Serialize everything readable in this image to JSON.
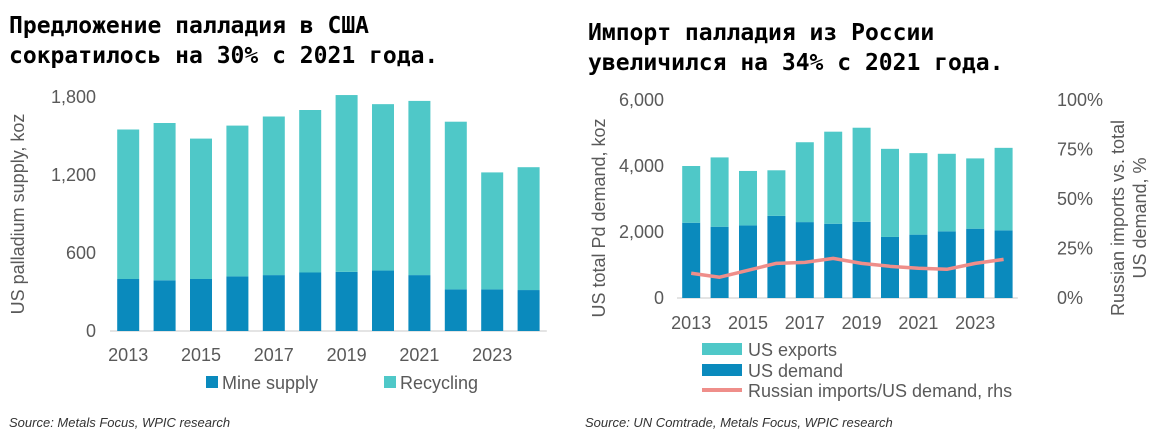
{
  "colors": {
    "mine": "#0a8abd",
    "recycling": "#4fc8c8",
    "us_demand": "#0a8abd",
    "us_exports": "#4fc8c8",
    "russian_line": "#ef8e8a",
    "axis_text": "#595959",
    "axis_line": "#c8c8c8"
  },
  "chart_data": [
    {
      "type": "bar",
      "stacked": true,
      "title": [
        "Предложение палладия в США",
        "сократилось на 30% с 2021 года."
      ],
      "ylabel": "US palladium supply, koz",
      "ylim": [
        0,
        1800
      ],
      "yticks": [
        "0",
        "600",
        "1,200",
        "1,800"
      ],
      "ytick_values": [
        0,
        600,
        1200,
        1800
      ],
      "categories": [
        "2013",
        "2014",
        "2015",
        "2016",
        "2017",
        "2018",
        "2019",
        "2020",
        "2021",
        "2022",
        "2023",
        "2024"
      ],
      "xtick_labels": [
        "2013",
        "",
        "2015",
        "",
        "2017",
        "",
        "2019",
        "",
        "2021",
        "",
        "2023",
        ""
      ],
      "series": [
        {
          "name": "Mine supply",
          "values": [
            400,
            390,
            400,
            420,
            430,
            450,
            455,
            465,
            430,
            320,
            320,
            315
          ]
        },
        {
          "name": "Recycling",
          "values": [
            1150,
            1210,
            1080,
            1160,
            1220,
            1250,
            1360,
            1280,
            1340,
            1290,
            900,
            945
          ]
        }
      ],
      "legend": [
        "Mine supply",
        "Recycling"
      ],
      "legend_position": "bottom",
      "source": "Source: Metals Focus, WPIC research"
    },
    {
      "type": "bar",
      "stacked": true,
      "title": [
        "Импорт палладия из России",
        "увеличился на 34% с 2021 года."
      ],
      "ylabel": "US total Pd demand, koz",
      "ylim": [
        0,
        6000
      ],
      "yticks": [
        "0",
        "2,000",
        "4,000",
        "6,000"
      ],
      "ytick_values": [
        0,
        2000,
        4000,
        6000
      ],
      "y2label": "Russian imports vs. total US demand, %",
      "y2lim": [
        0,
        100
      ],
      "y2ticks": [
        "0%",
        "25%",
        "50%",
        "75%",
        "100%"
      ],
      "y2tick_values": [
        0,
        25,
        50,
        75,
        100
      ],
      "categories": [
        "2013",
        "2014",
        "2015",
        "2016",
        "2017",
        "2018",
        "2019",
        "2020",
        "2021",
        "2022",
        "2023",
        "2024"
      ],
      "xtick_labels": [
        "2013",
        "",
        "2015",
        "",
        "2017",
        "",
        "2019",
        "",
        "2021",
        "",
        "2023",
        ""
      ],
      "series": [
        {
          "name": "US demand",
          "values": [
            2280,
            2160,
            2200,
            2490,
            2300,
            2250,
            2310,
            1850,
            1920,
            2020,
            2100,
            2050
          ]
        },
        {
          "name": "US exports",
          "values": [
            1720,
            2100,
            1650,
            1380,
            2420,
            2790,
            2850,
            2670,
            2470,
            2350,
            2130,
            2500
          ]
        },
        {
          "name": "Russian imports/US demand, rhs",
          "type": "line",
          "axis": "right",
          "values": [
            12.5,
            10.5,
            14,
            17.5,
            18,
            20,
            17.5,
            16,
            15,
            14.5,
            17.5,
            19.5
          ]
        }
      ],
      "legend": [
        "US exports",
        "US demand",
        "Russian imports/US demand, rhs"
      ],
      "legend_position": "bottom",
      "source": "Source: UN Comtrade, Metals Focus, WPIC research"
    }
  ]
}
